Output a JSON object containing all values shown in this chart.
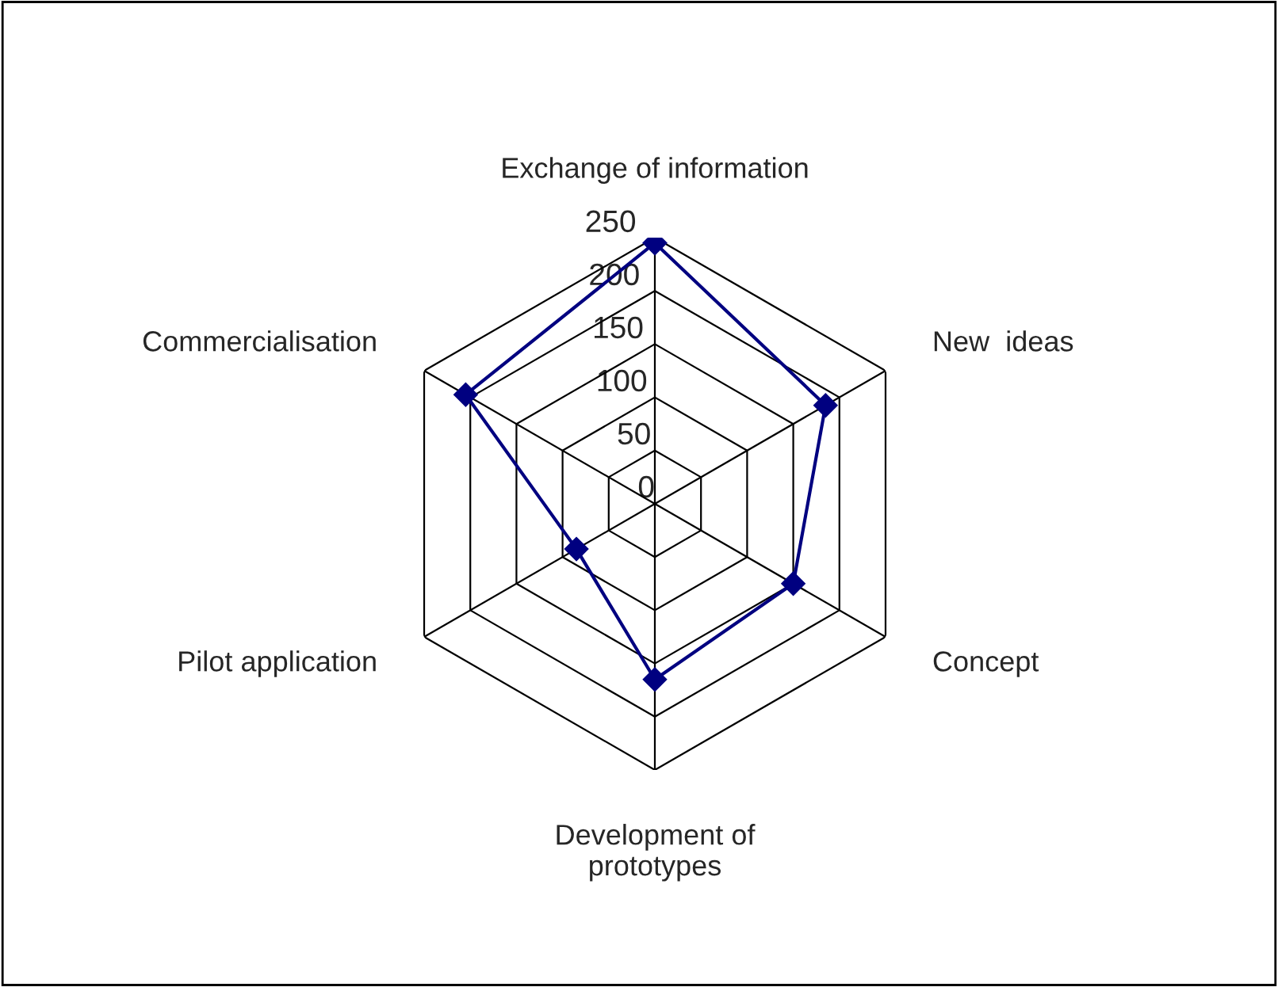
{
  "chart_data": {
    "type": "radar",
    "categories": [
      "Exchange of information",
      "New  ideas",
      "Concept",
      "Development of prototypes",
      "Pilot application",
      "Commercialisation"
    ],
    "series": [
      {
        "color": "#000080",
        "values": [
          245,
          185,
          150,
          165,
          85,
          205
        ]
      }
    ],
    "ylim": [
      0,
      250
    ],
    "yticks": [
      0,
      50,
      100,
      150,
      200,
      250
    ],
    "marker": "diamond",
    "line_style": "solid",
    "grid": true,
    "legend": false
  }
}
